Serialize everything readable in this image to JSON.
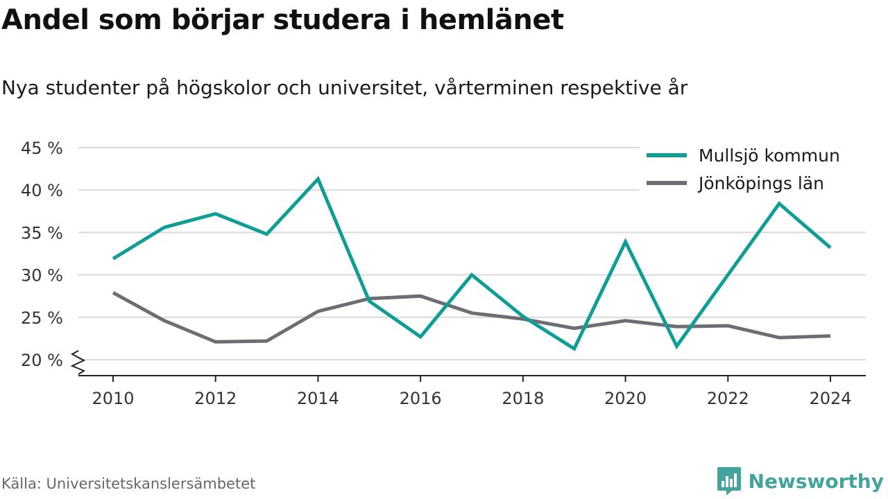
{
  "title": "Andel som börjar studera i hemlänet",
  "subtitle": "Nya studenter på högskolor och universitet, vårterminen respektive år",
  "source": "Källa: Universitetskanslersämbetet",
  "brand": "Newsworthy",
  "colors": {
    "accent": "#0f9e95",
    "secondary": "#6e6d73",
    "grid": "#d9d9d9",
    "brand": "#43a49b"
  },
  "chart_data": {
    "type": "line",
    "x": [
      2010,
      2011,
      2012,
      2013,
      2014,
      2015,
      2016,
      2017,
      2018,
      2019,
      2020,
      2021,
      2022,
      2023,
      2024
    ],
    "xticks": [
      "2010",
      "2012",
      "2014",
      "2016",
      "2018",
      "2020",
      "2022",
      "2024"
    ],
    "yticks": [
      "20 %",
      "25 %",
      "30 %",
      "35 %",
      "40 %",
      "45 %"
    ],
    "ylim": [
      18,
      45
    ],
    "yaxis_break": true,
    "grid": true,
    "legend_position": "top-right",
    "series": [
      {
        "name": "Mullsjö kommun",
        "color": "#0f9e95",
        "values": [
          31.9,
          35.6,
          37.2,
          34.8,
          41.3,
          26.9,
          22.7,
          30.0,
          25.1,
          21.3,
          33.9,
          21.6,
          30.0,
          38.4,
          33.2
        ]
      },
      {
        "name": "Jönköpings län",
        "color": "#6e6d73",
        "values": [
          27.9,
          24.6,
          22.1,
          22.2,
          25.7,
          27.2,
          27.5,
          25.5,
          24.8,
          23.7,
          24.6,
          23.9,
          24.0,
          22.6,
          22.8
        ]
      }
    ]
  }
}
